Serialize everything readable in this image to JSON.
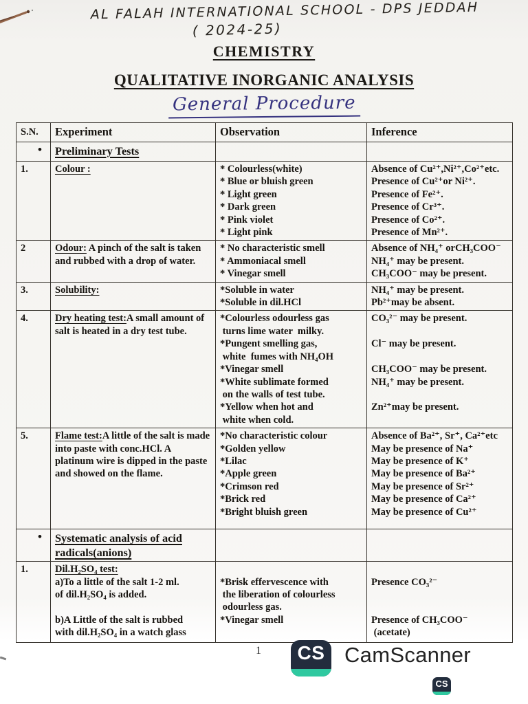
{
  "header": {
    "school_line1": "AL FALAH INTERNATIONAL SCHOOL - DPS JEDDAH",
    "school_line2": "( 2024-25)",
    "subject": "CHEMISTRY",
    "title": "QUALITATIVE INORGANIC ANALYSIS",
    "subtitle": "General Procedure"
  },
  "colors": {
    "ink_blue": "#34317e",
    "paper": "#f6f5f2",
    "table_line": "#34302a",
    "brand_navy": "#232d3d",
    "brand_teal": "#2fc9a0"
  },
  "table": {
    "columns": [
      "S.N.",
      "Experiment",
      "Observation",
      "Inference"
    ],
    "rows": [
      {
        "sn": "•",
        "section": "Preliminary Tests"
      },
      {
        "sn": "1.",
        "title": "Colour :",
        "text": "",
        "obs": [
          "* Colourless(white)",
          "* Blue or bluish green",
          "* Light green",
          "* Dark green",
          "* Pink violet",
          "* Light pink"
        ],
        "inf": [
          "Absence of Cu²⁺,Ni²⁺,Co²⁺etc.",
          "Presence of Cu²⁺or Ni²⁺.",
          "Presence of Fe²⁺.",
          "Presence of Cr³⁺.",
          "Presence of Co²⁺.",
          "Presence of Mn²⁺."
        ]
      },
      {
        "sn": "2",
        "title": "Odour:",
        "text": " A pinch of the salt is taken and rubbed with a drop of water.",
        "obs": [
          "* No characteristic smell",
          "* Ammoniacal smell",
          "* Vinegar smell"
        ],
        "inf": [
          "Absence of NH₄⁺ orCH₃COO⁻",
          "NH₄⁺ may be present.",
          "CH₃COO⁻ may be present."
        ]
      },
      {
        "sn": "3.",
        "title": "Solubility:",
        "text": "",
        "obs": [
          "*Soluble in water",
          "*Soluble in dil.HCl"
        ],
        "inf": [
          "NH₄⁺ may be present.",
          "Pb²⁺may be absent."
        ]
      },
      {
        "sn": "4.",
        "title": "Dry heating test:",
        "text": "A small amount of salt is heated in a dry test tube.",
        "obs": [
          "*Colourless odourless gas",
          " turns lime water  milky.",
          "*Pungent smelling gas,",
          " white  fumes with NH₄OH",
          "*Vinegar smell",
          "*White sublimate formed",
          " on the walls of test tube.",
          "*Yellow when hot and",
          " white when cold."
        ],
        "inf": [
          "CO₃²⁻ may be present.",
          "",
          "Cl⁻ may be present.",
          "",
          "CH₃COO⁻ may be present.",
          "NH₄⁺ may be present.",
          "",
          "Zn²⁺may be present."
        ]
      },
      {
        "sn": "5.",
        "title": "Flame test:",
        "text": "A little of the salt is made into paste with conc.HCl. A platinum wire is dipped in the paste and showed on the flame.",
        "obs": [
          "*No characteristic colour",
          "*Golden yellow",
          "*Lilac",
          "*Apple green",
          "*Crimson red",
          "*Brick red",
          "*Bright bluish green"
        ],
        "inf": [
          "Absence of Ba²⁺, Sr⁺, Ca²⁺etc",
          "May be presence of Na⁺",
          "May be presence of K⁺",
          "May be presence of Ba²⁺",
          "May be presence of Sr²⁺",
          "May be presence of Ca²⁺",
          "May be presence of Cu²⁺"
        ]
      },
      {
        "sn": "•",
        "section": "Systematic analysis of acid radicals(anions)"
      },
      {
        "sn": "1.",
        "lines": [
          "Dil.H₂SO₄ test:",
          "a)To a little of the salt 1-2 ml.",
          "of dil.H₂SO₄ is added.",
          "",
          "b)A Little of the salt is rubbed",
          "with dil.H₂SO₄ in a watch glass"
        ],
        "obs": [
          "",
          "*Brisk effervescence with",
          " the liberation of colourless",
          " odourless gas.",
          "*Vinegar smell"
        ],
        "inf": [
          "",
          "Presence CO₃²⁻",
          "",
          "",
          "Presence of CH₃COO⁻",
          " (acetate)"
        ]
      }
    ]
  },
  "footer": {
    "page_number": "1",
    "brand": "CamScanner",
    "brand_icon": "CS"
  }
}
